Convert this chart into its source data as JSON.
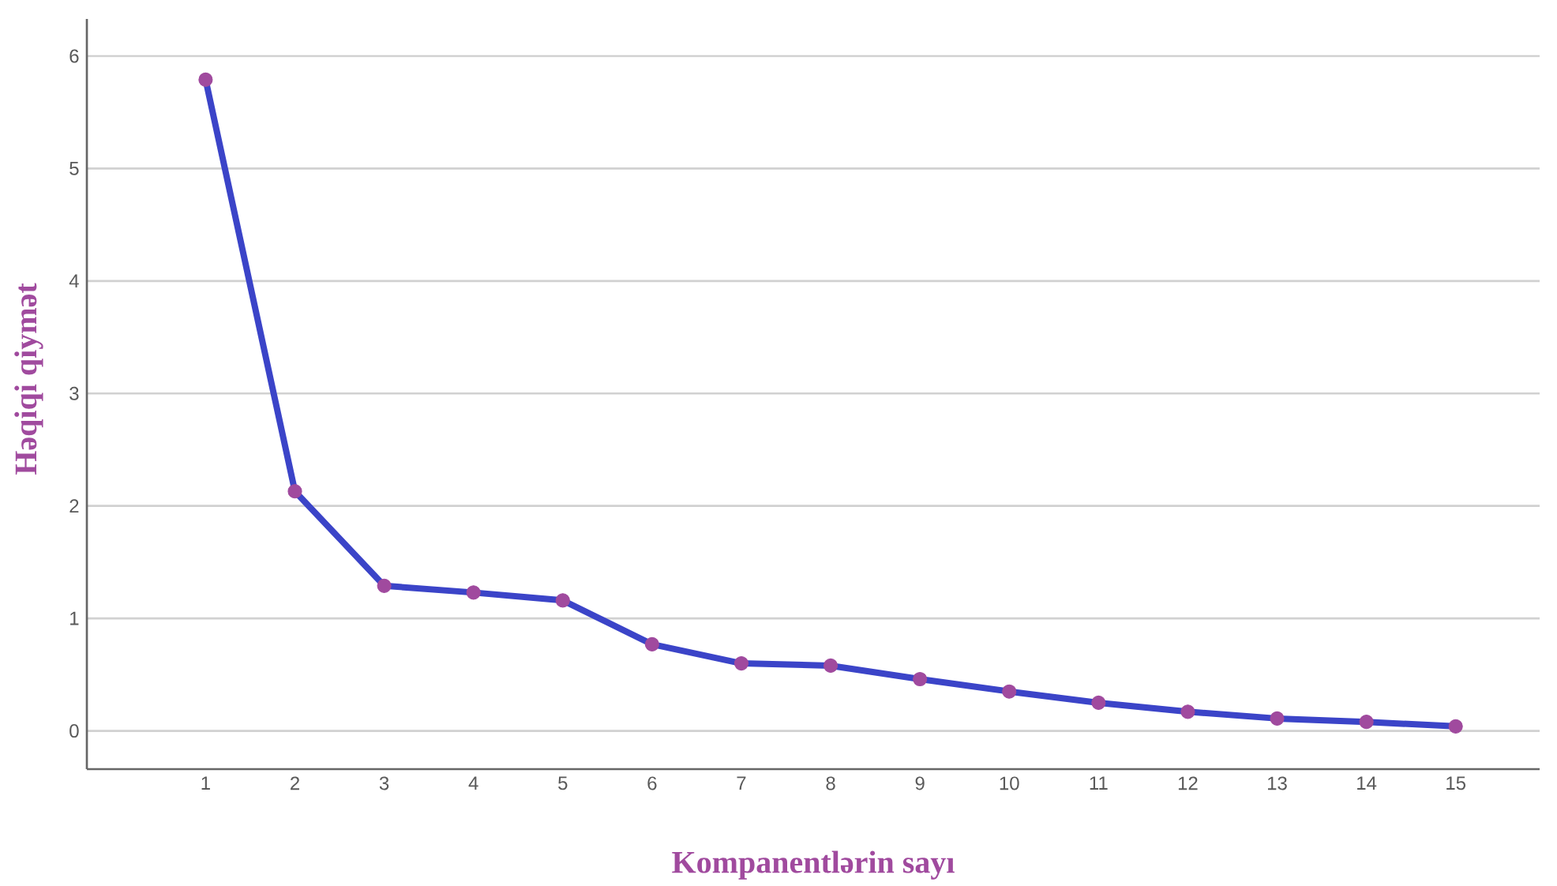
{
  "chart_data": {
    "type": "line",
    "xlabel": "Kompanentlərin sayı",
    "ylabel": "Həqiqi qiymət",
    "categories": [
      "1",
      "2",
      "3",
      "4",
      "5",
      "6",
      "7",
      "8",
      "9",
      "10",
      "11",
      "12",
      "13",
      "14",
      "15"
    ],
    "series": [
      {
        "color": "#3b44c8",
        "colors": [
          "#a04a9e",
          "#a04a9e",
          "#a04a9e",
          "#a04a9e",
          "#a04a9e",
          "#a04a9e",
          "#a04a9e",
          "#a04a9e",
          "#a04a9e",
          "#a04a9e",
          "#a04a9e",
          "#a04a9e",
          "#a04a9e",
          "#a04a9e",
          "#a04a9e"
        ],
        "values": [
          5.79,
          2.13,
          1.29,
          1.23,
          1.16,
          0.77,
          0.6,
          0.58,
          0.46,
          0.35,
          0.25,
          0.17,
          0.11,
          0.08,
          0.04
        ]
      }
    ],
    "ylim": [
      -0.34,
      6.33
    ],
    "yticks": [
      0,
      1,
      2,
      3,
      4,
      5,
      6
    ],
    "grid": "y",
    "marker": "circle",
    "line_style": "solid"
  }
}
